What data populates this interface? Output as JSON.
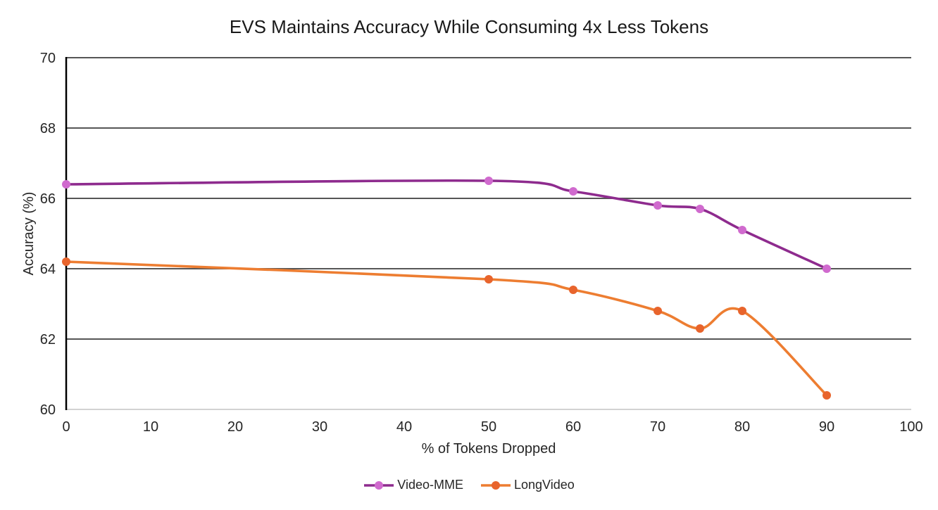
{
  "chart_data": {
    "type": "line",
    "title": "EVS Maintains Accuracy While Consuming 4x Less Tokens",
    "xlabel": "% of Tokens Dropped",
    "ylabel": "Accuracy (%)",
    "xlim": [
      0,
      100
    ],
    "ylim": [
      60,
      70
    ],
    "x_ticks": [
      0,
      10,
      20,
      30,
      40,
      50,
      60,
      70,
      80,
      90,
      100
    ],
    "y_ticks": [
      60,
      62,
      64,
      66,
      68,
      70
    ],
    "grid": "horizontal",
    "smooth": true,
    "marker": "circle",
    "legend_position": "bottom",
    "x": [
      0,
      50,
      60,
      70,
      75,
      80,
      90
    ],
    "series": [
      {
        "name": "Video-MME",
        "values": [
          66.4,
          66.5,
          66.2,
          65.8,
          65.7,
          65.1,
          64.0
        ],
        "line_color": "#8E2B8E",
        "marker_color": "#D06ACE"
      },
      {
        "name": "LongVideo",
        "values": [
          64.2,
          63.7,
          63.4,
          62.8,
          62.3,
          62.8,
          60.4
        ],
        "line_color": "#ED7D31",
        "marker_color": "#E8642C"
      }
    ],
    "colors": {
      "gridline": "#565656",
      "x_axis_line": "#D2D2D2",
      "y_axis_line": "#000000",
      "tick_text": "#262626",
      "title_text": "#1a1a1a"
    }
  }
}
